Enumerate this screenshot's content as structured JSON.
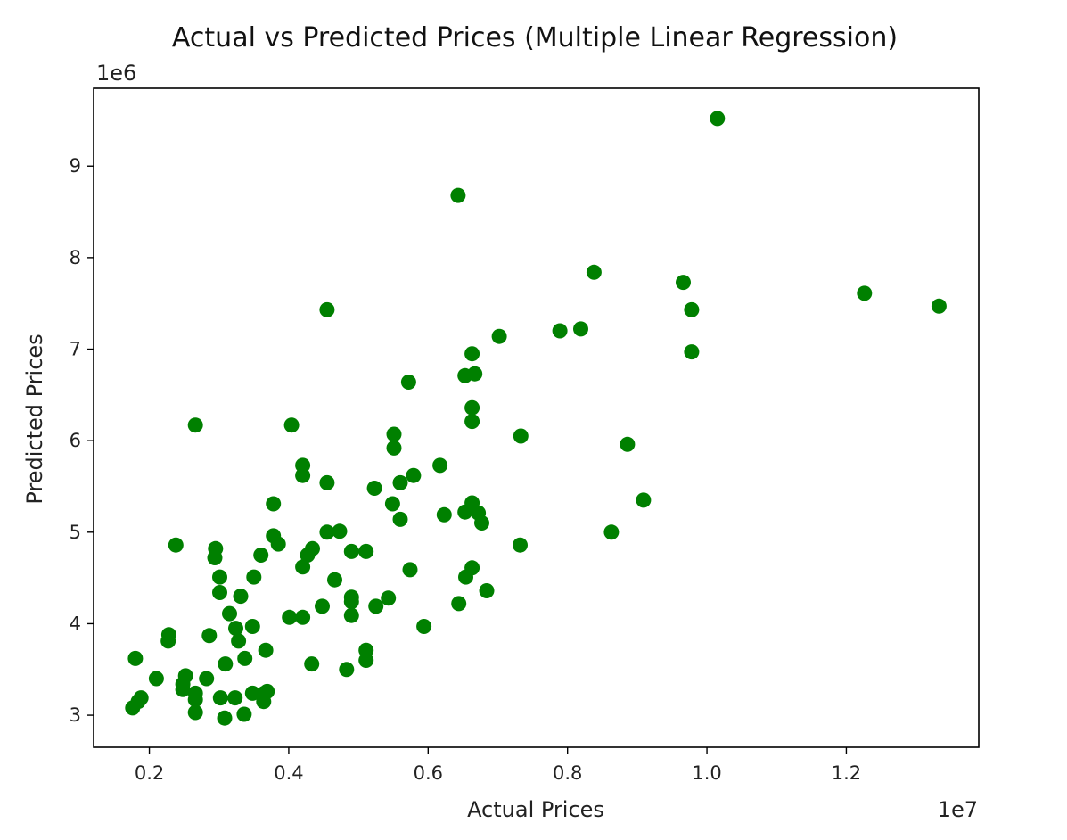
{
  "chart_data": {
    "type": "scatter",
    "title": "Actual vs Predicted Prices (Multiple Linear Regression)",
    "xlabel": "Actual Prices",
    "ylabel": "Predicted Prices",
    "x_offset_label": "1e7",
    "y_offset_label": "1e6",
    "xlim": [
      0.12,
      1.39
    ],
    "ylim": [
      2.65,
      9.85
    ],
    "xticks": [
      {
        "value": 0.2,
        "label": "0.2"
      },
      {
        "value": 0.4,
        "label": "0.4"
      },
      {
        "value": 0.6,
        "label": "0.6"
      },
      {
        "value": 0.8,
        "label": "0.8"
      },
      {
        "value": 1.0,
        "label": "1.0"
      },
      {
        "value": 1.2,
        "label": "1.2"
      }
    ],
    "yticks": [
      {
        "value": 3,
        "label": "3"
      },
      {
        "value": 4,
        "label": "4"
      },
      {
        "value": 5,
        "label": "5"
      },
      {
        "value": 6,
        "label": "6"
      },
      {
        "value": 7,
        "label": "7"
      },
      {
        "value": 8,
        "label": "8"
      },
      {
        "value": 9,
        "label": "9"
      }
    ],
    "marker_color": "#008000",
    "grid": false,
    "points": [
      [
        1.015,
        9.52
      ],
      [
        0.643,
        8.68
      ],
      [
        0.838,
        7.84
      ],
      [
        0.966,
        7.73
      ],
      [
        1.226,
        7.61
      ],
      [
        1.333,
        7.47
      ],
      [
        0.455,
        7.43
      ],
      [
        0.978,
        7.43
      ],
      [
        0.789,
        7.2
      ],
      [
        0.819,
        7.22
      ],
      [
        0.702,
        7.14
      ],
      [
        0.978,
        6.97
      ],
      [
        0.663,
        6.95
      ],
      [
        0.653,
        6.71
      ],
      [
        0.667,
        6.73
      ],
      [
        0.572,
        6.64
      ],
      [
        0.663,
        6.36
      ],
      [
        0.663,
        6.21
      ],
      [
        0.266,
        6.17
      ],
      [
        0.404,
        6.17
      ],
      [
        0.551,
        6.07
      ],
      [
        0.733,
        6.05
      ],
      [
        0.551,
        5.92
      ],
      [
        0.886,
        5.96
      ],
      [
        0.42,
        5.73
      ],
      [
        0.42,
        5.62
      ],
      [
        0.617,
        5.73
      ],
      [
        0.579,
        5.62
      ],
      [
        0.56,
        5.54
      ],
      [
        0.455,
        5.54
      ],
      [
        0.523,
        5.48
      ],
      [
        0.909,
        5.35
      ],
      [
        0.378,
        5.31
      ],
      [
        0.549,
        5.31
      ],
      [
        0.663,
        5.32
      ],
      [
        0.653,
        5.22
      ],
      [
        0.672,
        5.21
      ],
      [
        0.623,
        5.19
      ],
      [
        0.56,
        5.14
      ],
      [
        0.677,
        5.1
      ],
      [
        0.863,
        5.0
      ],
      [
        0.473,
        5.01
      ],
      [
        0.455,
        5.0
      ],
      [
        0.378,
        4.96
      ],
      [
        0.385,
        4.87
      ],
      [
        0.238,
        4.86
      ],
      [
        0.295,
        4.82
      ],
      [
        0.732,
        4.86
      ],
      [
        0.434,
        4.82
      ],
      [
        0.427,
        4.75
      ],
      [
        0.49,
        4.79
      ],
      [
        0.511,
        4.79
      ],
      [
        0.36,
        4.75
      ],
      [
        0.294,
        4.72
      ],
      [
        0.42,
        4.62
      ],
      [
        0.663,
        4.61
      ],
      [
        0.574,
        4.59
      ],
      [
        0.654,
        4.51
      ],
      [
        0.301,
        4.51
      ],
      [
        0.35,
        4.51
      ],
      [
        0.466,
        4.48
      ],
      [
        0.684,
        4.36
      ],
      [
        0.301,
        4.34
      ],
      [
        0.331,
        4.3
      ],
      [
        0.49,
        4.29
      ],
      [
        0.543,
        4.28
      ],
      [
        0.49,
        4.24
      ],
      [
        0.644,
        4.22
      ],
      [
        0.525,
        4.19
      ],
      [
        0.448,
        4.19
      ],
      [
        0.315,
        4.11
      ],
      [
        0.401,
        4.07
      ],
      [
        0.42,
        4.07
      ],
      [
        0.49,
        4.09
      ],
      [
        0.594,
        3.97
      ],
      [
        0.348,
        3.97
      ],
      [
        0.324,
        3.95
      ],
      [
        0.228,
        3.88
      ],
      [
        0.286,
        3.87
      ],
      [
        0.328,
        3.81
      ],
      [
        0.227,
        3.81
      ],
      [
        0.367,
        3.71
      ],
      [
        0.511,
        3.71
      ],
      [
        0.18,
        3.62
      ],
      [
        0.337,
        3.62
      ],
      [
        0.309,
        3.56
      ],
      [
        0.433,
        3.56
      ],
      [
        0.511,
        3.6
      ],
      [
        0.483,
        3.5
      ],
      [
        0.252,
        3.43
      ],
      [
        0.21,
        3.4
      ],
      [
        0.282,
        3.4
      ],
      [
        0.248,
        3.34
      ],
      [
        0.248,
        3.28
      ],
      [
        0.266,
        3.24
      ],
      [
        0.348,
        3.24
      ],
      [
        0.365,
        3.24
      ],
      [
        0.369,
        3.26
      ],
      [
        0.188,
        3.19
      ],
      [
        0.302,
        3.19
      ],
      [
        0.323,
        3.19
      ],
      [
        0.266,
        3.17
      ],
      [
        0.364,
        3.15
      ],
      [
        0.184,
        3.15
      ],
      [
        0.176,
        3.08
      ],
      [
        0.266,
        3.03
      ],
      [
        0.336,
        3.01
      ],
      [
        0.308,
        2.97
      ]
    ]
  }
}
